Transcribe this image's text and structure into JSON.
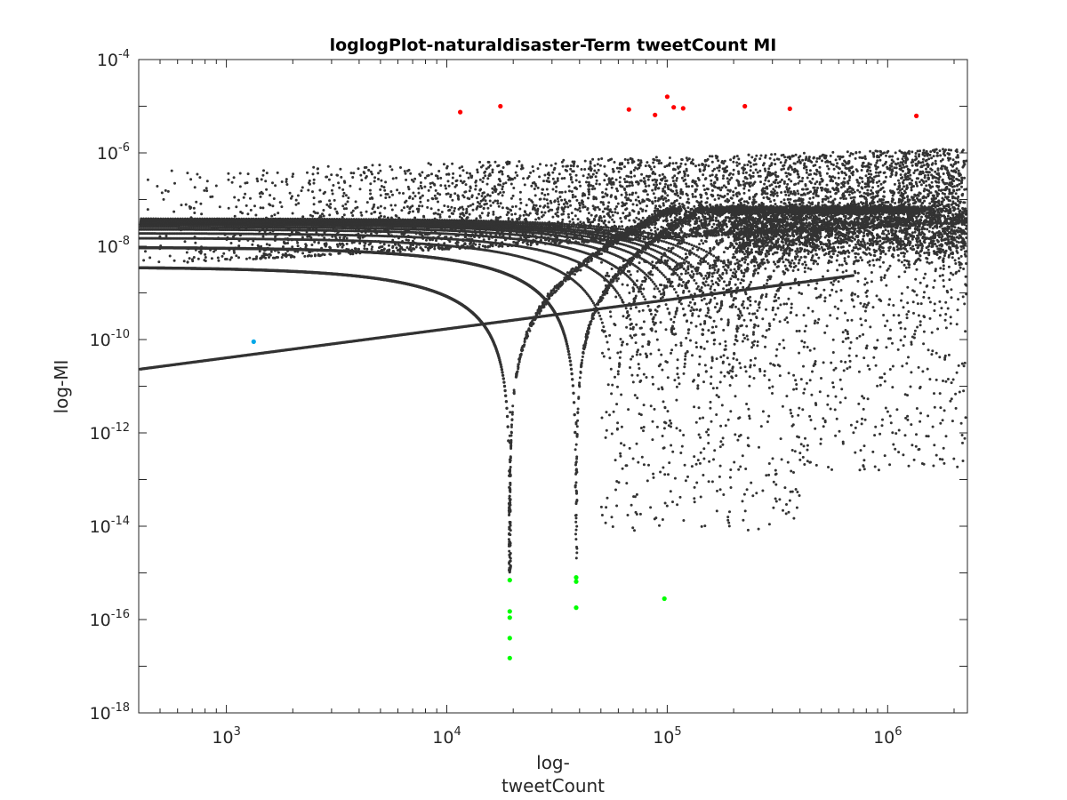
{
  "chart_data": {
    "type": "scatter",
    "title": "loglogPlot-naturaldisaster-Term tweetCount MI",
    "xlabel_line1": "log-",
    "xlabel_line2": "tweetCount",
    "ylabel": "log-MI",
    "x_scale": "log",
    "y_scale": "log",
    "xlim": [
      400,
      2300000
    ],
    "ylim": [
      1e-18,
      0.0001
    ],
    "x_tick_labels": [
      {
        "value": 1000,
        "base": "10",
        "exp": "3"
      },
      {
        "value": 10000,
        "base": "10",
        "exp": "4"
      },
      {
        "value": 100000,
        "base": "10",
        "exp": "5"
      },
      {
        "value": 1000000,
        "base": "10",
        "exp": "6"
      }
    ],
    "y_tick_labels": [
      {
        "value": 0.0001,
        "base": "10",
        "exp": "-4"
      },
      {
        "value": 1e-06,
        "base": "10",
        "exp": "-6"
      },
      {
        "value": 1e-08,
        "base": "10",
        "exp": "-8"
      },
      {
        "value": 1e-10,
        "base": "10",
        "exp": "-10"
      },
      {
        "value": 1e-12,
        "base": "10",
        "exp": "-12"
      },
      {
        "value": 1e-14,
        "base": "10",
        "exp": "-14"
      },
      {
        "value": 1e-16,
        "base": "10",
        "exp": "-16"
      },
      {
        "value": 1e-18,
        "base": "10",
        "exp": "-18"
      }
    ],
    "grid": false,
    "box": true,
    "colors": {
      "base": "#333333",
      "top_mi": "#ff0000",
      "low_mi": "#00ff00",
      "highlight": "#00a8e8",
      "axis": "#262626"
    },
    "base_series_description_points": {
      "rising_line": [
        [
          400,
          2.3e-11
        ],
        [
          1330,
          9e-11
        ],
        [
          10000,
          8e-10
        ],
        [
          100000,
          1e-08
        ],
        [
          700000,
          4e-08
        ]
      ],
      "falling_curve_1": [
        [
          400,
          3.5e-09
        ],
        [
          2000,
          2.5e-09
        ],
        [
          6000,
          1.2e-09
        ],
        [
          12000,
          3e-10
        ],
        [
          17000,
          4e-11
        ],
        [
          19300,
          3e-13
        ]
      ],
      "falling_curve_2": [
        [
          400,
          9e-09
        ],
        [
          5000,
          5e-09
        ],
        [
          20000,
          2e-09
        ],
        [
          32000,
          3e-10
        ],
        [
          38500,
          8e-13
        ]
      ]
    },
    "highlight_point": {
      "x": 1330,
      "y": 9e-11
    },
    "top_mi_points": [
      {
        "x": 11500,
        "y": 7.5e-06
      },
      {
        "x": 17500,
        "y": 1e-05
      },
      {
        "x": 67000,
        "y": 8.5e-06
      },
      {
        "x": 88000,
        "y": 6.5e-06
      },
      {
        "x": 100000,
        "y": 1.6e-05
      },
      {
        "x": 107000,
        "y": 9.5e-06
      },
      {
        "x": 118000,
        "y": 9e-06
      },
      {
        "x": 225000,
        "y": 1e-05
      },
      {
        "x": 360000,
        "y": 8.8e-06
      },
      {
        "x": 1350000,
        "y": 6.2e-06
      }
    ],
    "low_mi_points": [
      {
        "x": 19300,
        "y": 7e-16
      },
      {
        "x": 19300,
        "y": 1.5e-16
      },
      {
        "x": 19300,
        "y": 1.1e-16
      },
      {
        "x": 19300,
        "y": 4e-17
      },
      {
        "x": 19300,
        "y": 1.5e-17
      },
      {
        "x": 38600,
        "y": 8e-16
      },
      {
        "x": 38600,
        "y": 6.5e-16
      },
      {
        "x": 38600,
        "y": 1.8e-16
      },
      {
        "x": 97000,
        "y": 2.8e-16
      }
    ]
  }
}
